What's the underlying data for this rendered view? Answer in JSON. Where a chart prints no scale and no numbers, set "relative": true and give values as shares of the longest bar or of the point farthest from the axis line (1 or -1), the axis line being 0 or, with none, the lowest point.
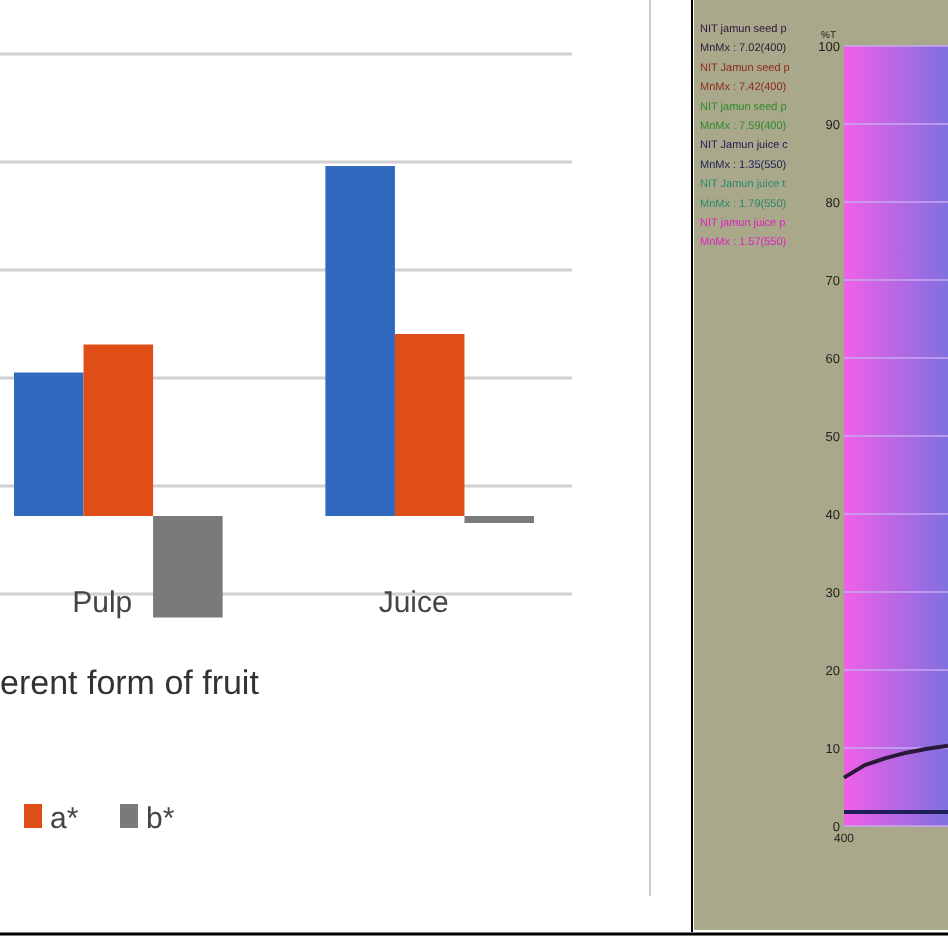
{
  "chart_data": [
    {
      "type": "bar",
      "relative": true,
      "xlabel": "erent form of fruit",
      "categories": [
        "Pulp",
        "Juice"
      ],
      "grid": true,
      "legend": "bottom",
      "series": [
        {
          "color": "#3169bf",
          "values": [
            0.41,
            1
          ]
        },
        {
          "name": "a*",
          "color": "#e04e18",
          "values": [
            0.49,
            0.52
          ]
        },
        {
          "name": "b*",
          "color": "#7a7a7a",
          "values": [
            -0.29,
            -0.02
          ]
        }
      ]
    },
    {
      "type": "line",
      "ylabel": "%T",
      "ylim": [
        0,
        100
      ],
      "yticks": [
        0,
        10,
        20,
        30,
        40,
        50,
        60,
        70,
        80,
        90,
        100
      ],
      "categories": [
        null,
        null,
        null,
        null,
        null,
        null
      ],
      "annotations": [
        "400"
      ],
      "grid": "y",
      "legend": "left",
      "series": [
        {
          "name": "NIT jamun seed p\nMnMx : 7.02(400)",
          "color": "#2a1838",
          "values": [
            6.2,
            7.8,
            8.7,
            9.4,
            9.9,
            10.3
          ]
        },
        {
          "name": "NIT Jamun seed p\nMnMx : 7.42(400)",
          "color": "#8c2a1c",
          "values": [
            null,
            null,
            null,
            null,
            null,
            null
          ]
        },
        {
          "name": "NIT jamun seed p\nMnMx : 7.59(400)",
          "color": "#2e8a2e",
          "values": [
            null,
            null,
            null,
            null,
            null,
            null
          ]
        },
        {
          "name": "NIT Jamun juice c\nMnMx : 1.35(550)",
          "color": "#1e1e5a",
          "values": [
            1.8,
            1.8,
            1.8,
            1.8,
            1.8,
            1.8
          ]
        },
        {
          "name": "NIT Jamun juice t\nMnMx : 1.79(550)",
          "color": "#2a8a6a",
          "values": [
            null,
            null,
            null,
            null,
            null,
            null
          ]
        },
        {
          "name": "NIT jamun juice p\nMnMx : 1.57(550)",
          "color": "#e020c0",
          "values": [
            null,
            null,
            null,
            null,
            null,
            null
          ]
        }
      ]
    }
  ]
}
